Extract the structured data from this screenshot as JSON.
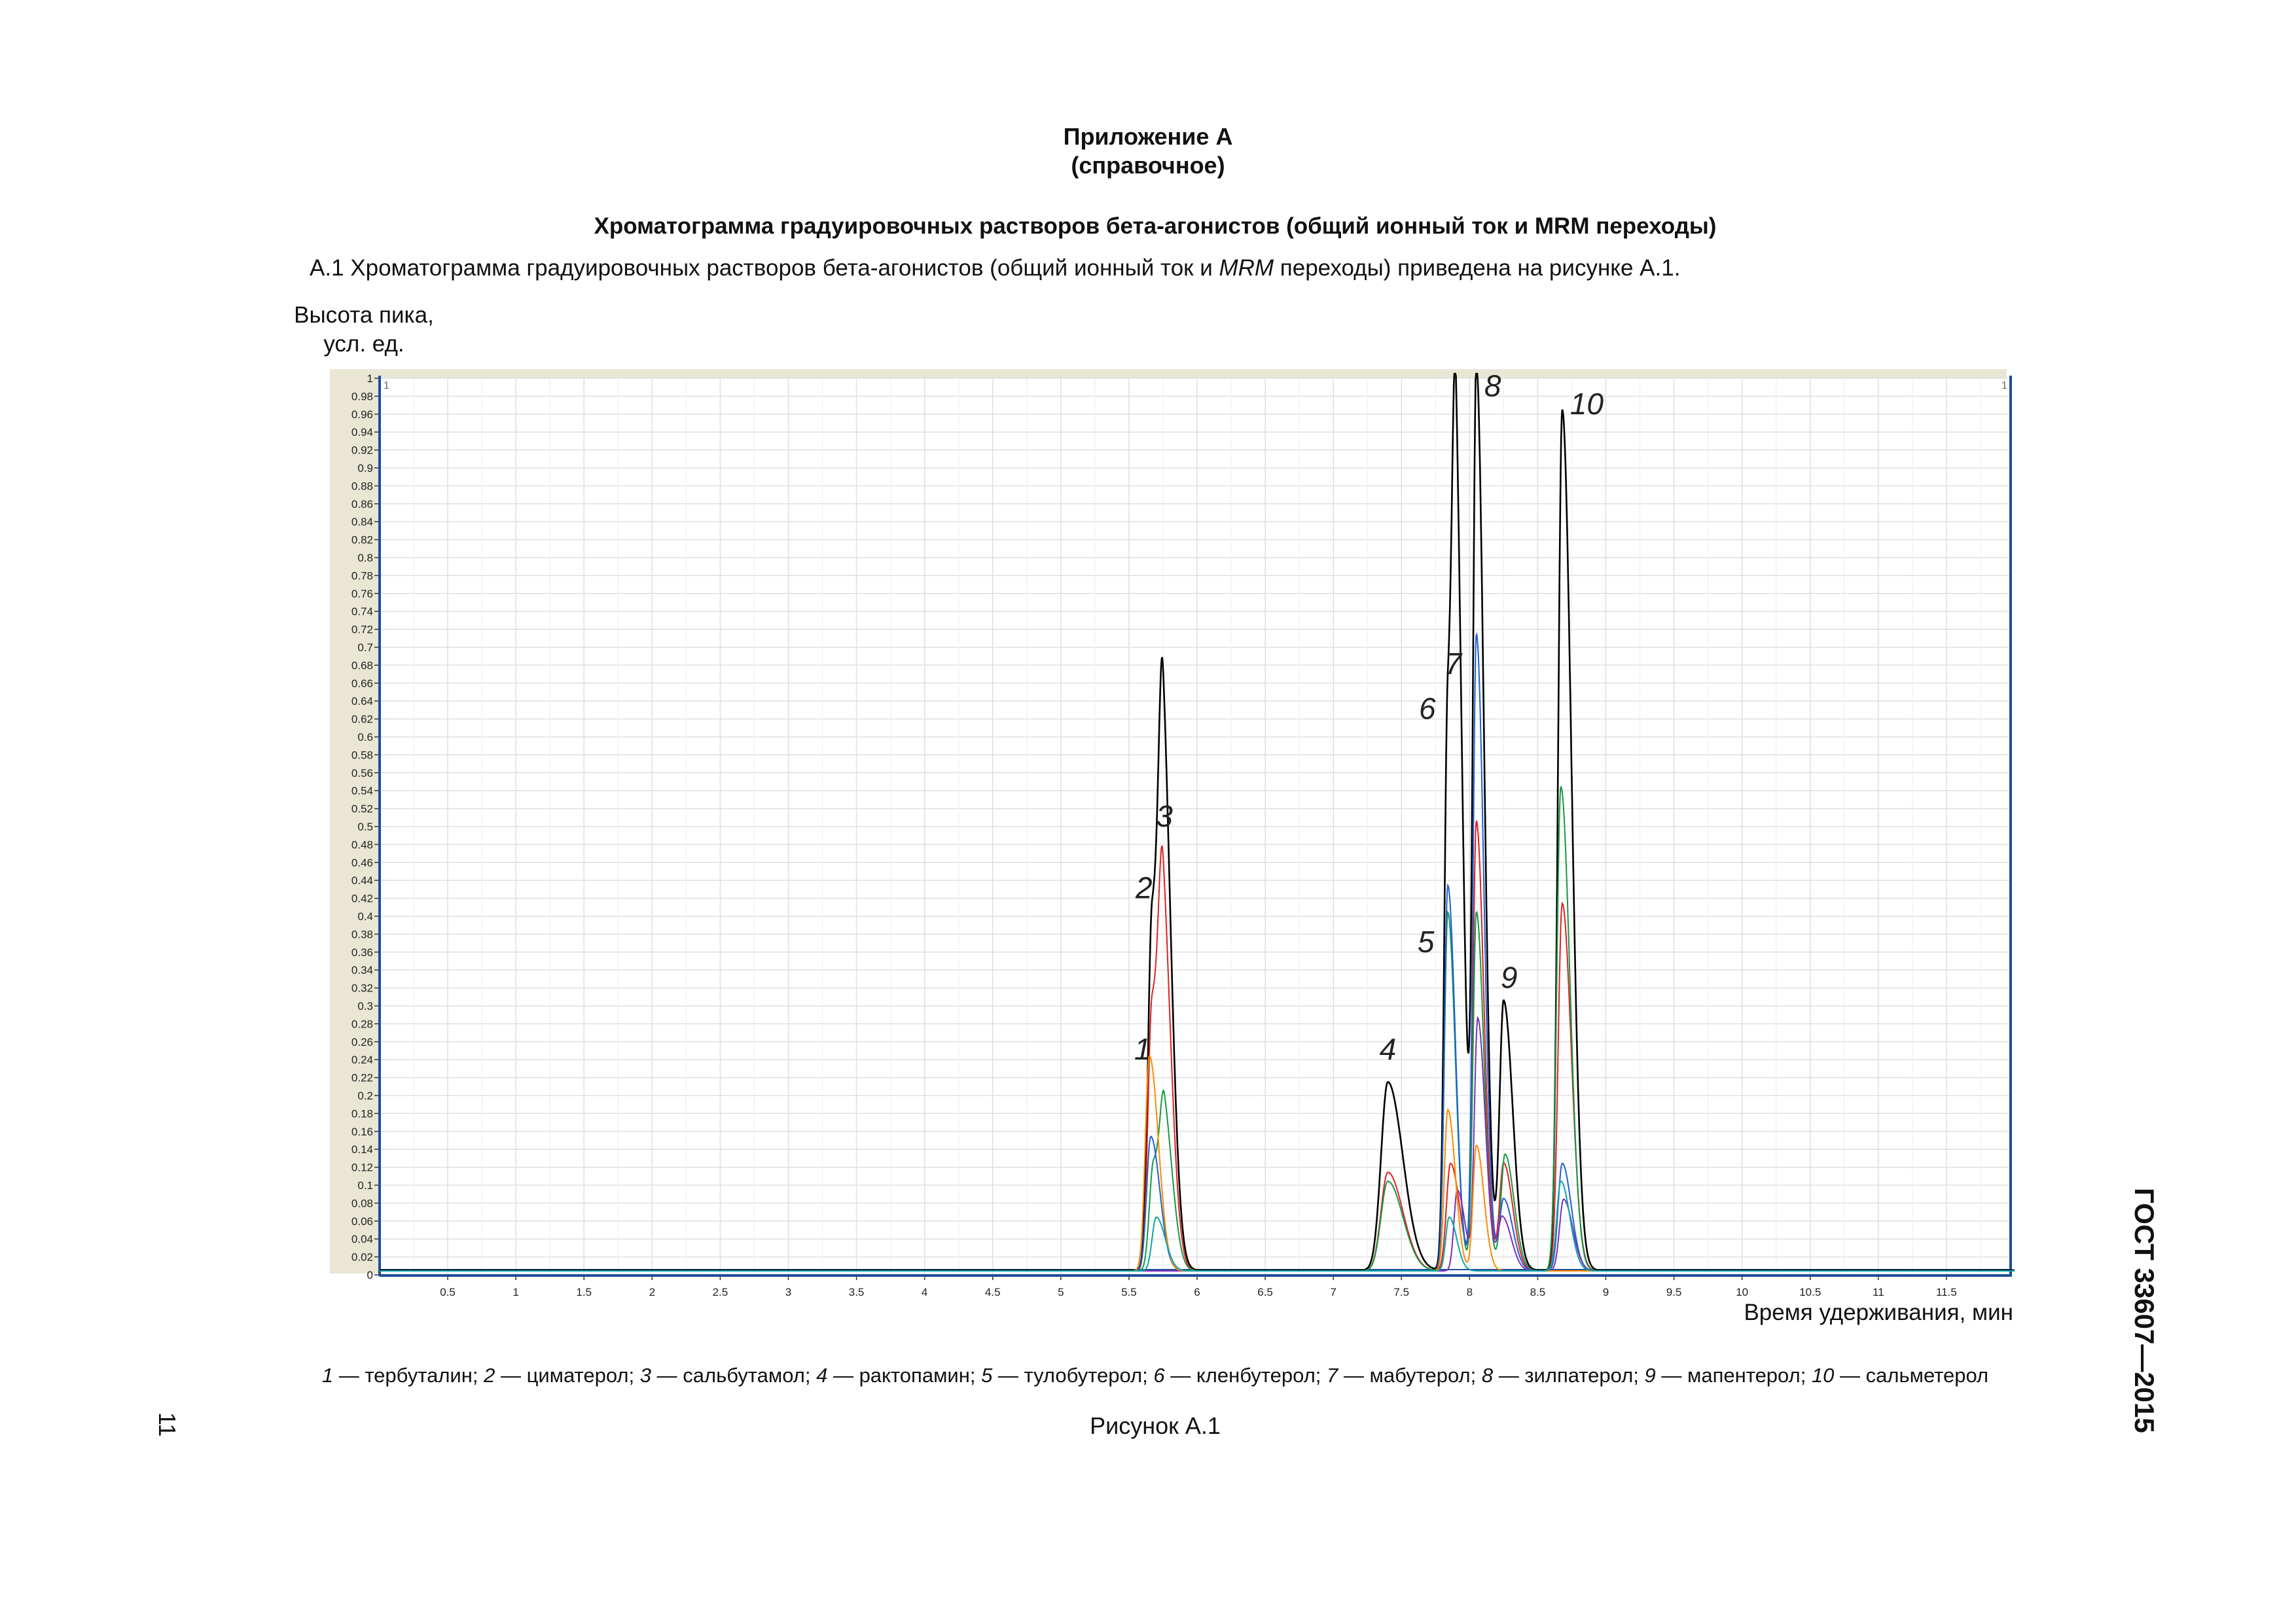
{
  "appendix": {
    "title": "Приложение А",
    "subtitle": "(справочное)"
  },
  "section_title": "Хроматограмма градуировочных растворов бета-агонистов (общий ионный ток и MRM переходы)",
  "intro": {
    "prefix": "А.1  Хроматограмма градуировочных растворов бета-агонистов (общий ионный ток и ",
    "italic": "MRM",
    "suffix": " переходы) приведена на рисунке А.1."
  },
  "y_axis_label": {
    "line1": "Высота пика,",
    "line2": "усл. ед."
  },
  "x_axis_label": "Время удерживания, мин",
  "legend": [
    {
      "num": "1",
      "name": "тербуталин"
    },
    {
      "num": "2",
      "name": "циматерол"
    },
    {
      "num": "3",
      "name": "сальбутамол"
    },
    {
      "num": "4",
      "name": "рактопамин"
    },
    {
      "num": "5",
      "name": "тулобутерол"
    },
    {
      "num": "6",
      "name": "кленбутерол"
    },
    {
      "num": "7",
      "name": "мабутерол"
    },
    {
      "num": "8",
      "name": "зилпатерол"
    },
    {
      "num": "9",
      "name": "мапентерол"
    },
    {
      "num": "10",
      "name": "сальметерол"
    }
  ],
  "legend_separator": "; ",
  "legend_dash": " — ",
  "caption": "Рисунок А.1",
  "page_number": "11",
  "standard": "ГОСТ 33607—2015",
  "colors": {
    "tic": "#000000",
    "red": "#e02020",
    "green": "#139a43",
    "blue": "#1f5fd6",
    "purple": "#7a2fbf",
    "orange": "#ff8a00",
    "teal": "#0aa6a6",
    "grid": "#dfdfdf",
    "plot_border": "#1f4e9c",
    "frame_bg": "#e9e6d4"
  },
  "chart_data": {
    "type": "line",
    "xlabel": "Время удерживания, мин",
    "ylabel": "Высота пика, усл. ед.",
    "xlim": [
      0,
      12
    ],
    "ylim": [
      0,
      1
    ],
    "x_ticks": [
      "0.5",
      "1",
      "1.5",
      "2",
      "2.5",
      "3",
      "3.5",
      "4",
      "4.5",
      "5",
      "5.5",
      "6",
      "6.5",
      "7",
      "7.5",
      "8",
      "8.5",
      "9",
      "9.5",
      "10",
      "10.5",
      "11",
      "11.5"
    ],
    "y_ticks": [
      "0",
      "0.02",
      "0.04",
      "0.06",
      "0.08",
      "0.1",
      "0.12",
      "0.14",
      "0.16",
      "0.18",
      "0.2",
      "0.22",
      "0.24",
      "0.26",
      "0.28",
      "0.3",
      "0.32",
      "0.34",
      "0.36",
      "0.38",
      "0.4",
      "0.42",
      "0.44",
      "0.46",
      "0.48",
      "0.5",
      "0.52",
      "0.54",
      "0.56",
      "0.58",
      "0.6",
      "0.62",
      "0.64",
      "0.66",
      "0.68",
      "0.7",
      "0.72",
      "0.74",
      "0.76",
      "0.78",
      "0.8",
      "0.82",
      "0.84",
      "0.86",
      "0.88",
      "0.9",
      "0.92",
      "0.94",
      "0.96",
      "0.98",
      "1"
    ],
    "corner_marks": [
      "1",
      "1"
    ],
    "grid": true,
    "peaks": [
      {
        "label": "1",
        "rt": 5.66,
        "height": 0.24,
        "label_x": 5.6,
        "label_y": 0.24
      },
      {
        "label": "2",
        "rt": 5.67,
        "height": 0.4,
        "label_x": 5.61,
        "label_y": 0.42
      },
      {
        "label": "3",
        "rt": 5.74,
        "height": 0.48,
        "label_x": 5.76,
        "label_y": 0.5
      },
      {
        "label": "4",
        "rt": 7.4,
        "height": 0.21,
        "label_x": 7.4,
        "label_y": 0.24
      },
      {
        "label": "5",
        "rt": 7.84,
        "height": 0.42,
        "label_x": 7.68,
        "label_y": 0.36
      },
      {
        "label": "6",
        "rt": 7.84,
        "height": 0.63,
        "label_x": 7.69,
        "label_y": 0.62
      },
      {
        "label": "7",
        "rt": 7.9,
        "height": 0.65,
        "label_x": 7.88,
        "label_y": 0.67
      },
      {
        "label": "8",
        "rt": 8.05,
        "height": 1.0,
        "label_x": 8.17,
        "label_y": 0.98
      },
      {
        "label": "9",
        "rt": 8.25,
        "height": 0.3,
        "label_x": 8.29,
        "label_y": 0.32
      },
      {
        "label": "10",
        "rt": 8.68,
        "height": 0.96,
        "label_x": 8.86,
        "label_y": 0.96
      }
    ],
    "traces": [
      {
        "color": "tic",
        "peaks": [
          [
            5.67,
            0.4,
            0.03
          ],
          [
            5.75,
            0.48,
            0.03
          ],
          [
            7.4,
            0.21,
            0.05
          ],
          [
            7.84,
            0.63,
            0.025
          ],
          [
            7.9,
            0.65,
            0.025
          ],
          [
            8.05,
            1.0,
            0.025
          ],
          [
            8.25,
            0.3,
            0.03
          ],
          [
            8.68,
            0.96,
            0.03
          ]
        ]
      },
      {
        "color": "red",
        "peaks": [
          [
            5.67,
            0.3,
            0.03
          ],
          [
            5.75,
            0.32,
            0.03
          ],
          [
            7.4,
            0.11,
            0.05
          ],
          [
            7.86,
            0.12,
            0.03
          ],
          [
            8.05,
            0.5,
            0.025
          ],
          [
            8.25,
            0.12,
            0.03
          ],
          [
            8.68,
            0.41,
            0.03
          ]
        ]
      },
      {
        "color": "green",
        "peaks": [
          [
            5.68,
            0.12,
            0.03
          ],
          [
            5.76,
            0.14,
            0.03
          ],
          [
            7.4,
            0.1,
            0.05
          ],
          [
            7.84,
            0.4,
            0.025
          ],
          [
            8.05,
            0.4,
            0.025
          ],
          [
            8.26,
            0.13,
            0.03
          ],
          [
            8.67,
            0.54,
            0.03
          ]
        ]
      },
      {
        "color": "blue",
        "peaks": [
          [
            5.66,
            0.15,
            0.03
          ],
          [
            7.84,
            0.43,
            0.025
          ],
          [
            8.05,
            0.71,
            0.025
          ],
          [
            8.25,
            0.08,
            0.03
          ],
          [
            8.68,
            0.12,
            0.03
          ]
        ]
      },
      {
        "color": "purple",
        "peaks": [
          [
            7.91,
            0.09,
            0.025
          ],
          [
            8.06,
            0.28,
            0.025
          ],
          [
            8.24,
            0.06,
            0.03
          ],
          [
            8.69,
            0.08,
            0.03
          ]
        ]
      },
      {
        "color": "orange",
        "peaks": [
          [
            5.65,
            0.24,
            0.03
          ],
          [
            7.84,
            0.18,
            0.025
          ],
          [
            8.05,
            0.14,
            0.025
          ]
        ]
      },
      {
        "color": "teal",
        "peaks": [
          [
            5.7,
            0.06,
            0.03
          ],
          [
            7.85,
            0.06,
            0.025
          ],
          [
            8.67,
            0.1,
            0.03
          ]
        ]
      }
    ]
  }
}
